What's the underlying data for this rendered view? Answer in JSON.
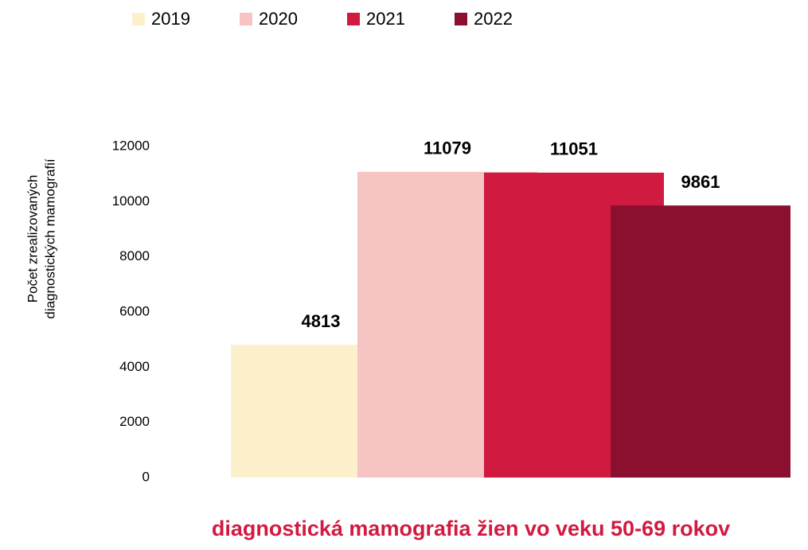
{
  "chart_data": {
    "type": "bar",
    "categories": [
      "diagnostická mamografia žien vo veku 50-69 rokov"
    ],
    "ylabel": [
      "Počet zrealizovaných",
      "diagnostických mamografií"
    ],
    "series": [
      {
        "name": "2019",
        "color": "#fdf0cc",
        "values": [
          4813
        ]
      },
      {
        "name": "2020",
        "color": "#f7c4c4",
        "values": [
          11079
        ]
      },
      {
        "name": "2021",
        "color": "#d11a40",
        "values": [
          11051
        ]
      },
      {
        "name": "2022",
        "color": "#8b1030",
        "values": [
          9861
        ]
      }
    ],
    "ylim": [
      0,
      12000
    ],
    "yticks": [
      0,
      2000,
      4000,
      6000,
      8000,
      10000,
      12000
    ],
    "grid": false,
    "legend": "top"
  }
}
